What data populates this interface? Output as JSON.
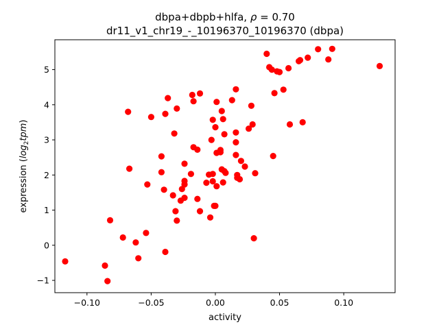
{
  "chart_data": {
    "type": "scatter",
    "title_parts": [
      "dbpa+dbpb+hlfa, ",
      "ρ",
      " = 0.70"
    ],
    "subtitle": "dr11_v1_chr19_-_10196370_10196370 (dbpa)",
    "xlabel": "activity",
    "ylabel_parts": [
      "expression (",
      "log",
      "2",
      "tpm",
      ")"
    ],
    "xlim": [
      -0.125,
      0.14
    ],
    "ylim": [
      -1.35,
      5.85
    ],
    "xticks": [
      -0.1,
      -0.05,
      0.0,
      0.05,
      0.1
    ],
    "xtick_labels": [
      "−0.10",
      "−0.05",
      "0.00",
      "0.05",
      "0.10"
    ],
    "yticks": [
      -1,
      0,
      1,
      2,
      3,
      4,
      5
    ],
    "ytick_labels": [
      "−1",
      "0",
      "1",
      "2",
      "3",
      "4",
      "5"
    ],
    "grid": false,
    "marker_color": "#ff0000",
    "points": [
      [
        -0.117,
        -0.46
      ],
      [
        -0.086,
        -0.58
      ],
      [
        -0.084,
        -1.02
      ],
      [
        -0.082,
        0.71
      ],
      [
        -0.072,
        0.22
      ],
      [
        -0.068,
        3.8
      ],
      [
        -0.067,
        2.18
      ],
      [
        -0.062,
        0.08
      ],
      [
        -0.06,
        -0.37
      ],
      [
        -0.054,
        0.35
      ],
      [
        -0.053,
        1.73
      ],
      [
        -0.05,
        3.65
      ],
      [
        -0.042,
        2.53
      ],
      [
        -0.042,
        2.08
      ],
      [
        -0.04,
        1.58
      ],
      [
        -0.039,
        3.74
      ],
      [
        -0.039,
        -0.19
      ],
      [
        -0.037,
        4.19
      ],
      [
        -0.033,
        1.42
      ],
      [
        -0.032,
        3.18
      ],
      [
        -0.031,
        0.97
      ],
      [
        -0.03,
        0.7
      ],
      [
        -0.03,
        3.89
      ],
      [
        -0.027,
        1.27
      ],
      [
        -0.026,
        1.6
      ],
      [
        -0.024,
        1.83
      ],
      [
        -0.024,
        1.73
      ],
      [
        -0.024,
        2.32
      ],
      [
        -0.024,
        1.35
      ],
      [
        -0.019,
        2.03
      ],
      [
        -0.018,
        4.28
      ],
      [
        -0.017,
        4.1
      ],
      [
        -0.017,
        2.79
      ],
      [
        -0.014,
        2.72
      ],
      [
        -0.014,
        1.32
      ],
      [
        -0.012,
        0.97
      ],
      [
        -0.012,
        4.32
      ],
      [
        -0.007,
        1.78
      ],
      [
        -0.005,
        2.01
      ],
      [
        -0.004,
        0.79
      ],
      [
        -0.003,
        3.0
      ],
      [
        -0.002,
        3.57
      ],
      [
        -0.002,
        1.82
      ],
      [
        -0.002,
        2.03
      ],
      [
        -0.001,
        1.12
      ],
      [
        0.0,
        1.12
      ],
      [
        0.0,
        3.36
      ],
      [
        0.001,
        1.68
      ],
      [
        0.001,
        2.63
      ],
      [
        0.001,
        4.08
      ],
      [
        0.004,
        2.65
      ],
      [
        0.004,
        2.71
      ],
      [
        0.005,
        3.82
      ],
      [
        0.005,
        2.16
      ],
      [
        0.006,
        3.59
      ],
      [
        0.006,
        1.79
      ],
      [
        0.007,
        3.16
      ],
      [
        0.007,
        2.11
      ],
      [
        0.008,
        2.06
      ],
      [
        0.013,
        4.13
      ],
      [
        0.016,
        4.44
      ],
      [
        0.016,
        2.57
      ],
      [
        0.016,
        3.21
      ],
      [
        0.016,
        2.93
      ],
      [
        0.017,
        1.92
      ],
      [
        0.017,
        2.0
      ],
      [
        0.019,
        1.88
      ],
      [
        0.02,
        2.4
      ],
      [
        0.023,
        2.24
      ],
      [
        0.026,
        3.32
      ],
      [
        0.028,
        3.97
      ],
      [
        0.029,
        3.44
      ],
      [
        0.03,
        0.2
      ],
      [
        0.031,
        2.05
      ],
      [
        0.04,
        5.45
      ],
      [
        0.042,
        5.07
      ],
      [
        0.044,
        5.0
      ],
      [
        0.045,
        2.54
      ],
      [
        0.046,
        4.33
      ],
      [
        0.048,
        4.95
      ],
      [
        0.05,
        4.93
      ],
      [
        0.053,
        4.43
      ],
      [
        0.057,
        5.04
      ],
      [
        0.058,
        3.44
      ],
      [
        0.065,
        5.24
      ],
      [
        0.066,
        5.27
      ],
      [
        0.068,
        3.5
      ],
      [
        0.072,
        5.34
      ],
      [
        0.08,
        5.58
      ],
      [
        0.088,
        5.29
      ],
      [
        0.091,
        5.59
      ],
      [
        0.128,
        5.1
      ]
    ]
  }
}
